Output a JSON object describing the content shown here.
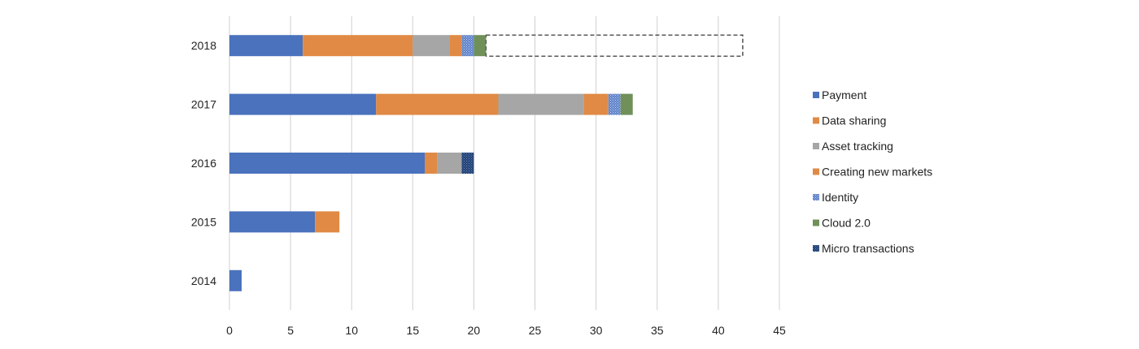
{
  "chart_data": {
    "type": "bar",
    "orientation": "horizontal",
    "stacked": true,
    "categories": [
      "2018",
      "2017",
      "2016",
      "2015",
      "2014"
    ],
    "series": [
      {
        "name": "Payment",
        "color": "#4a72bd",
        "pattern": "solid",
        "values": [
          6,
          12,
          16,
          7,
          1
        ]
      },
      {
        "name": "Data sharing",
        "color": "#e08a45",
        "pattern": "solid",
        "values": [
          9,
          10,
          1,
          2,
          0
        ]
      },
      {
        "name": "Asset tracking",
        "color": "#a6a6a6",
        "pattern": "solid",
        "values": [
          3,
          7,
          2,
          0,
          0
        ]
      },
      {
        "name": "Creating new markets",
        "color": "#e08a45",
        "pattern": "solid",
        "values": [
          1,
          2,
          0,
          0,
          0
        ]
      },
      {
        "name": "Identity",
        "color": "#5b7fc8",
        "pattern": "dots",
        "values": [
          1,
          1,
          0,
          0,
          0
        ]
      },
      {
        "name": "Cloud 2.0",
        "color": "#70905a",
        "pattern": "solid",
        "values": [
          1,
          1,
          0,
          0,
          0
        ]
      },
      {
        "name": "Micro transactions",
        "color": "#1f3f73",
        "pattern": "dots",
        "values": [
          0,
          0,
          1,
          0,
          0
        ]
      }
    ],
    "projection": {
      "category": "2018",
      "from": 21,
      "to": 42,
      "style": "dashed-outline"
    },
    "x_ticks": [
      "0",
      "5",
      "10",
      "15",
      "20",
      "25",
      "30",
      "35",
      "40",
      "45"
    ],
    "xlim": [
      0,
      45
    ],
    "grid": "vertical",
    "legend_position": "right",
    "title": "",
    "xlabel": "",
    "ylabel": ""
  }
}
